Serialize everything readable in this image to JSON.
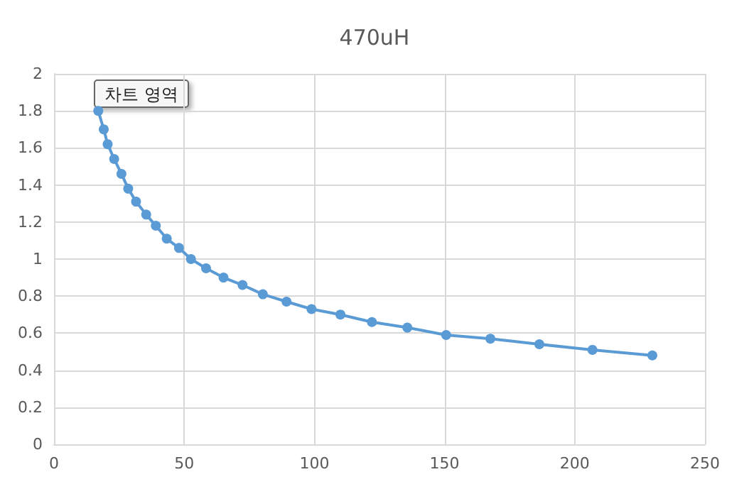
{
  "chart_data": {
    "type": "line",
    "title": "470uH",
    "annotations": [
      "차트 영역"
    ],
    "x": [
      17.0,
      19.1,
      20.6,
      23.1,
      25.9,
      28.5,
      31.5,
      35.4,
      39.1,
      43.3,
      48.0,
      52.6,
      58.4,
      65.1,
      72.4,
      80.2,
      89.3,
      98.9,
      110.0,
      122.1,
      135.7,
      150.6,
      167.6,
      186.4,
      206.8,
      229.8
    ],
    "series": [
      {
        "color": "#5b9bd5",
        "values": [
          1.8,
          1.7,
          1.62,
          1.54,
          1.46,
          1.38,
          1.31,
          1.24,
          1.18,
          1.11,
          1.06,
          1.0,
          0.95,
          0.9,
          0.86,
          0.81,
          0.77,
          0.73,
          0.7,
          0.66,
          0.63,
          0.59,
          0.57,
          0.54,
          0.51,
          0.48
        ]
      }
    ],
    "xlim": [
      0,
      250
    ],
    "xticks": [
      0,
      50,
      100,
      150,
      200,
      250
    ],
    "ylim": [
      0,
      2
    ],
    "yticks": [
      0,
      0.2,
      0.4,
      0.6,
      0.8,
      1,
      1.2,
      1.4,
      1.6,
      1.8,
      2
    ],
    "grid": true,
    "marker": "circle",
    "line_style": "solid"
  }
}
